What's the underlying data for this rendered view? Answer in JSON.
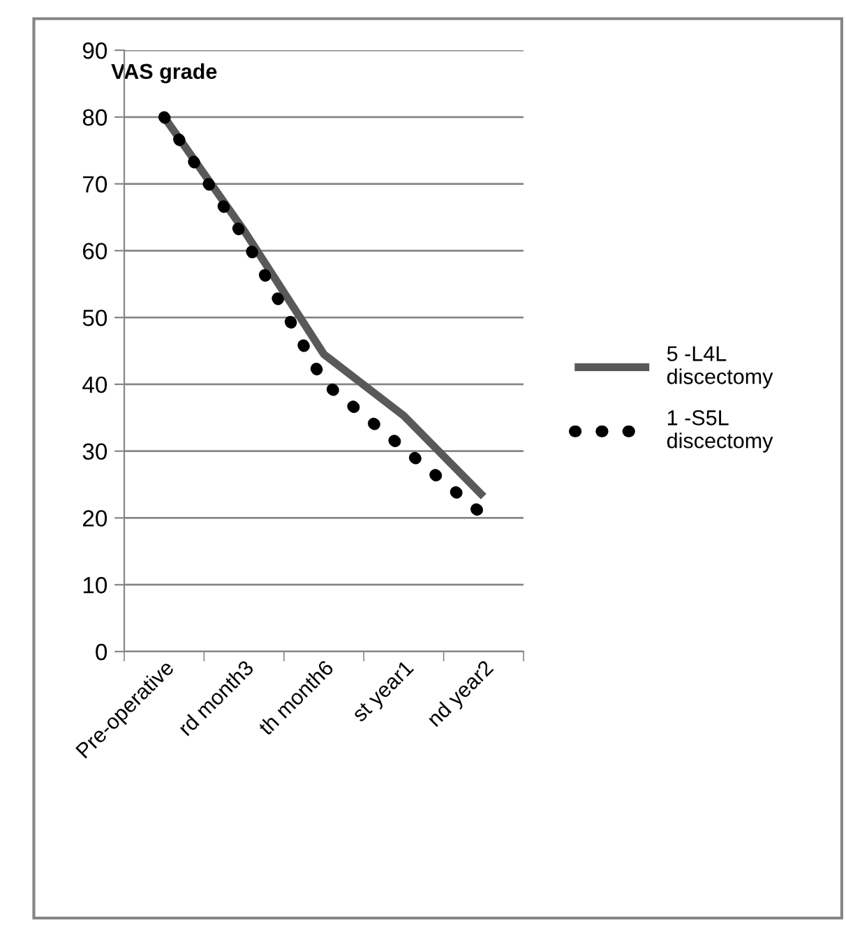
{
  "chart_data": {
    "type": "line",
    "ylabel": "VAS grade",
    "categories": [
      "Pre-operative",
      "rd month3",
      "th month6",
      "st year1",
      "nd year2"
    ],
    "series": [
      {
        "name": "5 -L4L discectomy",
        "color": "#595959",
        "values": [
          80,
          63,
          44.5,
          35.3,
          23.2
        ],
        "line_style": "solid"
      },
      {
        "name": "1 -S5L discectomy",
        "color": "#000000",
        "values": [
          80,
          62,
          40.3,
          30.4,
          20.4
        ],
        "line_style": "dotted"
      }
    ],
    "ylim": [
      0,
      90
    ],
    "yticks": [
      0,
      10,
      20,
      30,
      40,
      50,
      60,
      70,
      80,
      90
    ],
    "grid": "y",
    "legend": "right",
    "marker": "none"
  }
}
